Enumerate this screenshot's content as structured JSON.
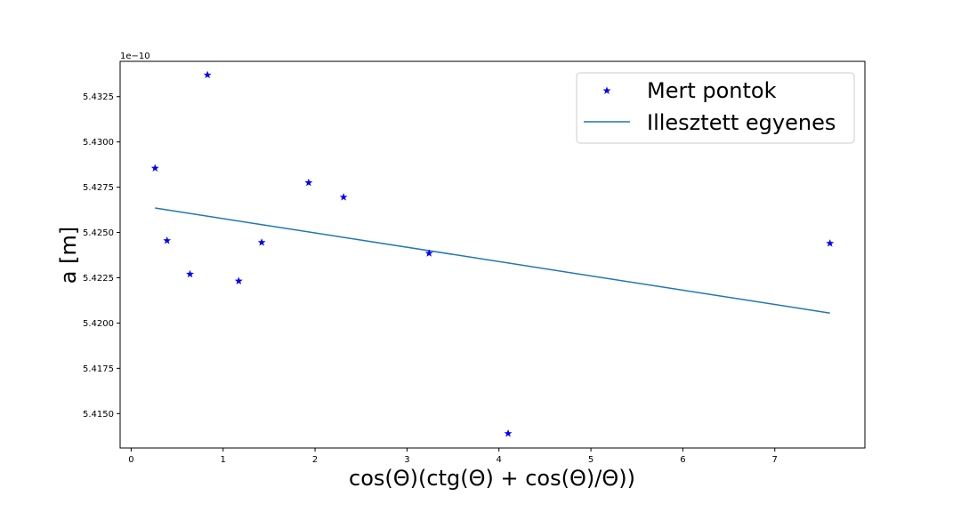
{
  "chart_data": {
    "type": "scatter",
    "xlabel": "cos(Θ)(ctg(Θ) + cos(Θ)/Θ))",
    "ylabel": "a [m]",
    "y_offset_label": "1e−10",
    "xlim": [
      -0.12,
      7.98
    ],
    "ylim": [
      5.4131,
      5.43445
    ],
    "x_ticks": [
      0,
      1,
      2,
      3,
      4,
      5,
      6,
      7
    ],
    "x_tick_labels": [
      "0",
      "1",
      "2",
      "3",
      "4",
      "5",
      "6",
      "7"
    ],
    "y_ticks": [
      5.415,
      5.4175,
      5.42,
      5.4225,
      5.425,
      5.4275,
      5.43,
      5.4325
    ],
    "y_tick_labels": [
      "5.4150",
      "5.4175",
      "5.4200",
      "5.4225",
      "5.4250",
      "5.4275",
      "5.4300",
      "5.4325"
    ],
    "grid": false,
    "legend_position": "top-right",
    "series": [
      {
        "name": "Mert pontok",
        "kind": "markers",
        "marker": "star",
        "color": "#0000ff",
        "x": [
          0.26,
          0.39,
          0.64,
          0.83,
          1.17,
          1.42,
          1.93,
          2.31,
          3.24,
          4.1,
          7.6
        ],
        "y": [
          5.42855,
          5.42455,
          5.4227,
          5.4337,
          5.42232,
          5.42445,
          5.42775,
          5.42695,
          5.42385,
          5.4139,
          5.4244
        ]
      },
      {
        "name": "Illesztett egyenes",
        "kind": "line",
        "color": "#1f77b4",
        "x": [
          0.26,
          7.6
        ],
        "y": [
          5.42635,
          5.42055
        ]
      }
    ]
  }
}
